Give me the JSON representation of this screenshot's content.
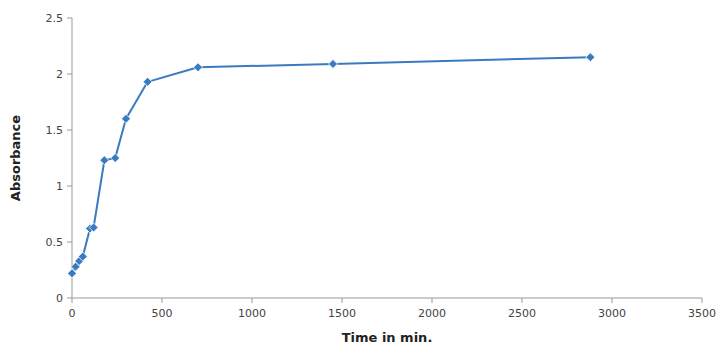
{
  "chart_data": {
    "type": "line",
    "x": [
      0,
      20,
      40,
      60,
      100,
      120,
      180,
      240,
      300,
      420,
      700,
      1450,
      2880
    ],
    "values": [
      0.22,
      0.28,
      0.33,
      0.37,
      0.62,
      0.63,
      1.23,
      1.25,
      1.6,
      1.93,
      2.06,
      2.09,
      2.15
    ],
    "color": "#3a7bbf",
    "marker": "diamond",
    "xlabel": "Time in min.",
    "ylabel": "Absorbance",
    "xlim": [
      0,
      3500
    ],
    "ylim": [
      0,
      2.5
    ],
    "xticks": [
      0,
      500,
      1000,
      1500,
      2000,
      2500,
      3000,
      3500
    ],
    "yticks": [
      0,
      0.5,
      1,
      1.5,
      2,
      2.5
    ],
    "grid": false
  }
}
